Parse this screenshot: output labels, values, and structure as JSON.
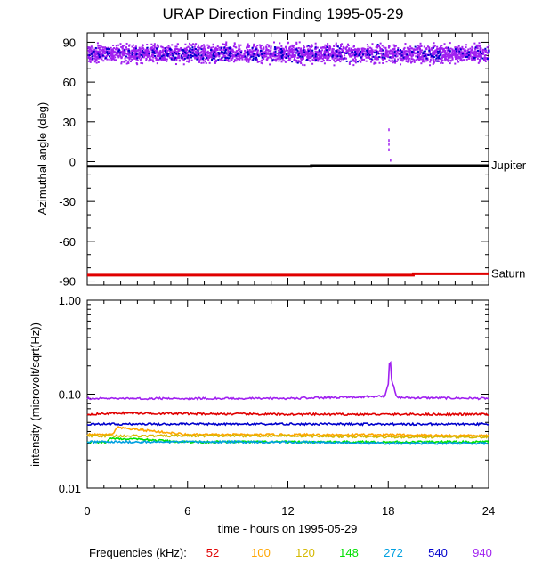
{
  "chart_data": [
    {
      "type": "scatter",
      "title": "URAP Direction Finding  1995-05-29",
      "xlabel": "",
      "ylabel": "Azimuthal angle (deg)",
      "xlim": [
        0,
        24
      ],
      "ylim": [
        -93,
        97
      ],
      "x_ticks": [
        "0",
        "6",
        "12",
        "18",
        "24"
      ],
      "y_ticks": [
        "90",
        "60",
        "30",
        "0",
        "-30",
        "-60",
        "-90"
      ],
      "reference_lines": [
        {
          "name": "Jupiter",
          "color": "#000000",
          "x": [
            0,
            13.4,
            13.4,
            24
          ],
          "y": [
            -3.5,
            -3.5,
            -3.0,
            -3.0
          ]
        },
        {
          "name": "Saturn",
          "color": "#e00000",
          "x": [
            0,
            19.5,
            19.5,
            24
          ],
          "y": [
            -85.5,
            -85.5,
            -84.5,
            -84.5
          ]
        }
      ],
      "series": [
        {
          "color": "#a020f0",
          "x": [
            0,
            24
          ],
          "y_band": [
            72,
            92
          ],
          "y_center": 80
        },
        {
          "color": "#0000cc",
          "x": [
            0,
            24
          ],
          "y_band": [
            74,
            90
          ],
          "y_center": 80
        },
        {
          "color": "#a020f0",
          "x": [
            18.0,
            18.0,
            18.0,
            18.0,
            18.1
          ],
          "y": [
            25,
            17,
            14,
            10,
            2
          ]
        }
      ]
    },
    {
      "type": "line",
      "xlabel": "time - hours on 1995-05-29",
      "ylabel": "intensity (microvolt/sqrt(Hz))",
      "xlim": [
        0,
        24
      ],
      "ylim": [
        0.01,
        1.0
      ],
      "yscale": "log",
      "x_ticks": [
        "0",
        "6",
        "12",
        "18",
        "24"
      ],
      "y_ticks": [
        "1.00",
        "0.10",
        "0.01"
      ],
      "legend_label": "Frequencies (kHz):",
      "series": [
        {
          "name": "52",
          "color": "#e00000",
          "x": [
            0,
            2,
            6,
            12,
            18,
            24
          ],
          "y": [
            0.061,
            0.063,
            0.062,
            0.061,
            0.061,
            0.061
          ]
        },
        {
          "name": "100",
          "color": "#ffa500",
          "x": [
            0,
            1.5,
            1.8,
            6,
            12,
            18,
            24
          ],
          "y": [
            0.037,
            0.037,
            0.044,
            0.037,
            0.037,
            0.037,
            0.036
          ]
        },
        {
          "name": "120",
          "color": "#d4b800",
          "x": [
            0,
            6,
            12,
            18,
            24
          ],
          "y": [
            0.036,
            0.036,
            0.036,
            0.035,
            0.035
          ]
        },
        {
          "name": "148",
          "color": "#00e000",
          "x": [
            0,
            1.2,
            1.4,
            6,
            17,
            24
          ],
          "y": [
            0.031,
            0.031,
            0.034,
            0.031,
            0.031,
            0.031
          ]
        },
        {
          "name": "272",
          "color": "#00a0e0",
          "x": [
            0,
            6,
            12,
            18,
            24
          ],
          "y": [
            0.031,
            0.031,
            0.031,
            0.03,
            0.03
          ]
        },
        {
          "name": "540",
          "color": "#0000cc",
          "x": [
            0,
            6,
            12,
            18,
            24
          ],
          "y": [
            0.048,
            0.048,
            0.048,
            0.048,
            0.048
          ]
        },
        {
          "name": "940",
          "color": "#a020f0",
          "x": [
            0,
            6,
            12,
            17.8,
            18.0,
            18.1,
            18.2,
            18.5,
            24
          ],
          "y": [
            0.09,
            0.09,
            0.09,
            0.095,
            0.13,
            0.25,
            0.14,
            0.092,
            0.09
          ]
        }
      ]
    }
  ]
}
